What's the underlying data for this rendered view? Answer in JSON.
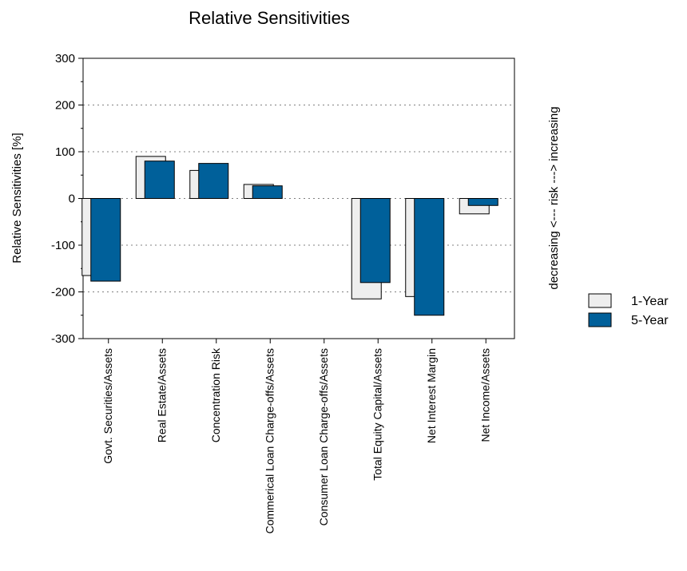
{
  "chart_data": {
    "type": "bar",
    "title": "Relative Sensitivities",
    "ylabel": "Relative Sensitivities [%]",
    "right_label": "decreasing <--- risk ---> increasing",
    "ylim": [
      -300,
      300
    ],
    "yticks": [
      "300",
      "200",
      "100",
      "0",
      "-100",
      "-200",
      "-300"
    ],
    "grid": true,
    "legend_position": "right",
    "categories": [
      "Govt. Securities/Assets",
      "Real Estate/Assets",
      "Concentration Risk",
      "Commerical Loan Charge-offs/Assets",
      "Consumer Loan Charge-offs/Assets",
      "Total Equity Capital/Assets",
      "Net Interest Margin",
      "Net Income/Assets"
    ],
    "series": [
      {
        "name": "1-Year",
        "color": "#eeeeee",
        "values": [
          -165,
          90,
          60,
          30,
          0,
          -215,
          -210,
          -33
        ]
      },
      {
        "name": "5-Year",
        "color": "#00609a",
        "values": [
          -177,
          80,
          75,
          27,
          0,
          -180,
          -250,
          -15
        ]
      }
    ]
  }
}
